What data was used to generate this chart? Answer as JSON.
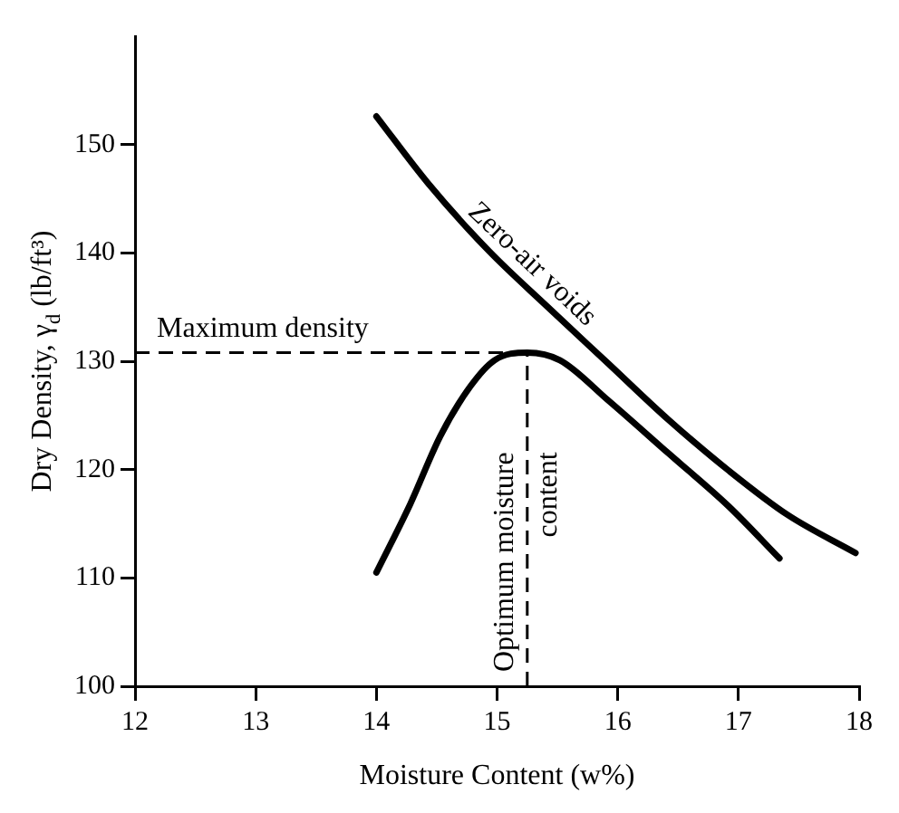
{
  "chart_data": {
    "type": "line",
    "xlabel": "Moisture Content (w%)",
    "ylabel": "Dry Density, γ$_{d}$ (lb/ft³)",
    "xlim": [
      12,
      18
    ],
    "xticks": [
      12,
      13,
      14,
      15,
      16,
      17,
      18
    ],
    "ylim": [
      100,
      160
    ],
    "yticks": [
      100,
      110,
      120,
      130,
      140,
      150
    ],
    "grid": false,
    "legend": false,
    "marker": "none",
    "line_style": "solid",
    "series": [
      {
        "name": "Zero-air voids",
        "color": "#000000",
        "x": [
          14,
          14.43,
          14.93,
          15.42,
          15.92,
          16.42,
          16.92,
          17.41,
          17.97
        ],
        "values": [
          152.6,
          146.4,
          140.2,
          135.0,
          129.8,
          124.6,
          119.9,
          115.8,
          112.3
        ]
      },
      {
        "color": "#000000",
        "x": [
          14.0,
          14.28,
          14.53,
          14.78,
          14.98,
          15.25,
          15.52,
          15.92,
          16.42,
          16.92,
          17.34
        ],
        "values": [
          110.5,
          116.8,
          123.1,
          127.7,
          130.1,
          130.8,
          130.1,
          126.4,
          121.5,
          116.6,
          111.8
        ]
      }
    ],
    "ref_lines": [
      {
        "axis": "y",
        "value": 130.8,
        "label": "Maximum density",
        "line_style": "dashed"
      },
      {
        "axis": "x",
        "value": 15.25,
        "label": "Optimum moisture content",
        "line_style": "dashed"
      }
    ]
  }
}
